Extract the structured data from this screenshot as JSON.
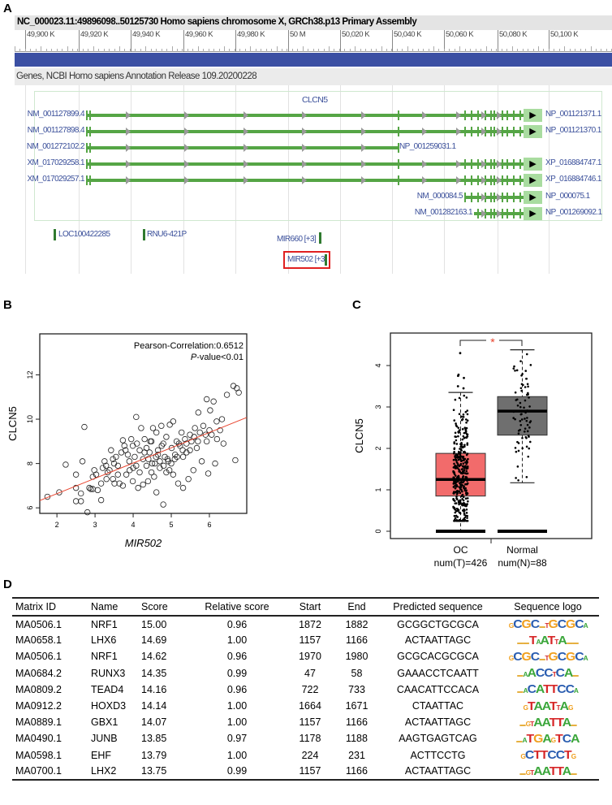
{
  "panels": {
    "a": "A",
    "b": "B",
    "c": "C",
    "d": "D"
  },
  "genome_browser": {
    "title": "NC_000023.11:49896098..50125730 Homo sapiens chromosome X, GRCh38.p13 Primary Assembly",
    "ruler_ticks": [
      "49,900 K",
      "49,920 K",
      "49,940 K",
      "49,960 K",
      "49,980 K",
      "50 M",
      "50,020 K",
      "50,040 K",
      "50,060 K",
      "50,080 K",
      "50,100 K"
    ],
    "track_name": "Genes, NCBI Homo sapiens Annotation Release 109.20200228",
    "gene_name": "CLCN5",
    "transcripts": [
      {
        "left": "NM_001127899.4",
        "right": "NP_001121371.1"
      },
      {
        "left": "NM_001127898.4",
        "right": "NP_001121370.1"
      },
      {
        "left": "NM_001272102.2",
        "right": "NP_001259031.1"
      },
      {
        "left": "XM_017029258.1",
        "right": "XP_016884747.1"
      },
      {
        "left": "XM_017029257.1",
        "right": "XP_016884746.1"
      },
      {
        "left": "NM_000084.5",
        "right": "NP_000075.1"
      },
      {
        "left": "NM_001282163.1",
        "right": "NP_001269092.1"
      }
    ],
    "other_genes": [
      "LOC100422285",
      "RNU6-421P",
      "MIR660 [+3]",
      "MIR502 [+3]"
    ],
    "colors": {
      "transcript": "#55a545",
      "highlight": "#e02020",
      "scale_bar": "#3b4fa3"
    }
  },
  "chart_data": [
    {
      "type": "scatter",
      "title": "",
      "annotation": [
        "Pearson-Correlation:0.6512",
        "P",
        "-value<0.01"
      ],
      "xlabel": "MIR502",
      "ylabel": "CLCN5",
      "xlim": [
        1.55,
        6.98
      ],
      "ylim": [
        5.75,
        13.85
      ],
      "xticks": [
        "2",
        "3",
        "4",
        "5",
        "6"
      ],
      "yticks": [
        "6",
        "8",
        "10",
        "12"
      ],
      "regression": {
        "slope": 0.69,
        "intercept": 5.26,
        "color": "#e8402a"
      },
      "points": [
        [
          1.75,
          6.5
        ],
        [
          2.06,
          6.7
        ],
        [
          2.23,
          7.95
        ],
        [
          2.5,
          7.5
        ],
        [
          2.5,
          6.9
        ],
        [
          2.5,
          6.3
        ],
        [
          2.63,
          6.65
        ],
        [
          2.63,
          6.3
        ],
        [
          2.67,
          8.1
        ],
        [
          2.72,
          9.65
        ],
        [
          2.8,
          5.8
        ],
        [
          2.85,
          6.9
        ],
        [
          2.89,
          6.85
        ],
        [
          2.94,
          7.4
        ],
        [
          2.94,
          6.85
        ],
        [
          2.98,
          7.7
        ],
        [
          3.03,
          7.5
        ],
        [
          3.07,
          6.8
        ],
        [
          3.16,
          6.35
        ],
        [
          3.16,
          7.1
        ],
        [
          3.2,
          7.8
        ],
        [
          3.25,
          8.1
        ],
        [
          3.29,
          7.9
        ],
        [
          3.33,
          7.6
        ],
        [
          3.38,
          7.7
        ],
        [
          3.42,
          8.6
        ],
        [
          3.47,
          8.2
        ],
        [
          3.47,
          7.3
        ],
        [
          3.51,
          7.1
        ],
        [
          3.55,
          8.3
        ],
        [
          3.6,
          7.5
        ],
        [
          3.64,
          7.1
        ],
        [
          3.69,
          8.5
        ],
        [
          3.73,
          9.05
        ],
        [
          3.73,
          7.0
        ],
        [
          3.77,
          8.8
        ],
        [
          3.82,
          7.5
        ],
        [
          3.86,
          8.4
        ],
        [
          3.91,
          7.7
        ],
        [
          3.95,
          9.1
        ],
        [
          3.99,
          8.8
        ],
        [
          3.99,
          7.2
        ],
        [
          4.04,
          8.3
        ],
        [
          4.08,
          10.1
        ],
        [
          4.08,
          7.9
        ],
        [
          4.13,
          6.9
        ],
        [
          4.17,
          8.6
        ],
        [
          4.17,
          7.6
        ],
        [
          4.21,
          9.6
        ],
        [
          4.26,
          8.2
        ],
        [
          4.26,
          7.05
        ],
        [
          4.3,
          9.1
        ],
        [
          4.35,
          8.7
        ],
        [
          4.35,
          7.9
        ],
        [
          4.39,
          7.2
        ],
        [
          4.43,
          8.5
        ],
        [
          4.48,
          9.0
        ],
        [
          4.48,
          7.6
        ],
        [
          4.52,
          9.6
        ],
        [
          4.57,
          8.0
        ],
        [
          4.61,
          6.7
        ],
        [
          4.61,
          9.4
        ],
        [
          4.65,
          8.6
        ],
        [
          4.7,
          7.8
        ],
        [
          4.74,
          9.7
        ],
        [
          4.79,
          8.9
        ],
        [
          4.79,
          6.15
        ],
        [
          4.83,
          8.3
        ],
        [
          4.87,
          9.2
        ],
        [
          4.87,
          7.6
        ],
        [
          4.92,
          8.1
        ],
        [
          4.96,
          9.75
        ],
        [
          5.01,
          8.7
        ],
        [
          5.05,
          9.9
        ],
        [
          5.05,
          7.5
        ],
        [
          5.09,
          8.2
        ],
        [
          5.14,
          9.0
        ],
        [
          5.18,
          7.1
        ],
        [
          5.23,
          8.8
        ],
        [
          5.27,
          9.4
        ],
        [
          5.31,
          8.3
        ],
        [
          5.31,
          6.9
        ],
        [
          5.36,
          9.1
        ],
        [
          5.4,
          8.5
        ],
        [
          5.45,
          7.3
        ],
        [
          5.49,
          9.3
        ],
        [
          5.49,
          8.6
        ],
        [
          5.53,
          9.0
        ],
        [
          5.58,
          7.7
        ],
        [
          5.62,
          9.6
        ],
        [
          5.67,
          8.7
        ],
        [
          5.71,
          10.3
        ],
        [
          5.75,
          9.4
        ],
        [
          5.8,
          8.1
        ],
        [
          5.84,
          9.7
        ],
        [
          5.93,
          10.9
        ],
        [
          5.93,
          9.0
        ],
        [
          5.97,
          7.55
        ],
        [
          6.02,
          10.4
        ],
        [
          6.06,
          9.3
        ],
        [
          6.11,
          10.8
        ],
        [
          6.15,
          8.0
        ],
        [
          6.19,
          9.9
        ],
        [
          6.28,
          9.5
        ],
        [
          6.33,
          10.0
        ],
        [
          6.37,
          8.9
        ],
        [
          6.46,
          11.1
        ],
        [
          6.63,
          11.5
        ],
        [
          6.72,
          11.4
        ],
        [
          6.77,
          11.2
        ],
        [
          6.68,
          8.15
        ],
        [
          3.5,
          8.0
        ],
        [
          3.9,
          8.1
        ],
        [
          4.0,
          7.8
        ],
        [
          4.4,
          8.2
        ],
        [
          4.5,
          8.0
        ],
        [
          4.55,
          7.4
        ],
        [
          4.6,
          8.3
        ],
        [
          4.7,
          8.1
        ],
        [
          4.8,
          7.9
        ],
        [
          4.9,
          8.2
        ],
        [
          5.0,
          8.0
        ],
        [
          5.1,
          8.4
        ],
        [
          5.2,
          8.9
        ],
        [
          5.3,
          8.6
        ],
        [
          5.4,
          8.9
        ],
        [
          5.6,
          9.2
        ],
        [
          5.7,
          9.0
        ],
        [
          5.9,
          9.3
        ],
        [
          6.0,
          9.5
        ],
        [
          6.2,
          9.1
        ],
        [
          3.3,
          7.3
        ],
        [
          3.6,
          7.9
        ],
        [
          3.8,
          8.6
        ],
        [
          4.1,
          8.9
        ],
        [
          4.3,
          8.5
        ],
        [
          4.45,
          9.0
        ],
        [
          4.65,
          8.4
        ],
        [
          4.75,
          8.8
        ],
        [
          4.95,
          7.7
        ],
        [
          5.15,
          8.3
        ]
      ]
    },
    {
      "type": "box",
      "ylabel": "CLCN5",
      "ylim": [
        -0.2,
        4.75
      ],
      "yticks": [
        "0",
        "1",
        "2",
        "3",
        "4"
      ],
      "significance": "*",
      "groups": [
        {
          "name": "OC",
          "count_label": "num(T)=426",
          "n": 426,
          "color": "#f26b6b",
          "whisker_low": 0,
          "q1": 0.85,
          "median": 1.25,
          "q3": 1.88,
          "whisker_high": 3.35,
          "outliers": [
            3.45,
            3.5,
            3.7,
            3.75,
            3.78,
            4.3
          ]
        },
        {
          "name": "Normal",
          "count_label": "num(N)=88",
          "n": 88,
          "color": "#6f6f6f",
          "whisker_low": 1.17,
          "q1": 2.32,
          "median": 2.9,
          "q3": 3.25,
          "whisker_high": 4.38,
          "outliers": []
        }
      ]
    }
  ],
  "table": {
    "headers": [
      "Matrix ID",
      "Name",
      "Score",
      "Relative score",
      "Start",
      "End",
      "Predicted sequence",
      "Sequence logo"
    ],
    "rows": [
      {
        "id": "MA0506.1",
        "name": "NRF1",
        "score": "15.00",
        "rel": "0.96",
        "start": "1872",
        "end": "1882",
        "seq": "GCGGCTGCGCA",
        "logo": "gCGC_tGCGCa"
      },
      {
        "id": "MA0658.1",
        "name": "LHX6",
        "score": "14.69",
        "rel": "1.00",
        "start": "1157",
        "end": "1166",
        "seq": "ACTAATTAGC",
        "logo": "__TaATtA__"
      },
      {
        "id": "MA0506.1",
        "name": "NRF1",
        "score": "14.62",
        "rel": "0.96",
        "start": "1970",
        "end": "1980",
        "seq": "GCGCACGCGCA",
        "logo": "gCGC_tGCGCa"
      },
      {
        "id": "MA0684.2",
        "name": "RUNX3",
        "score": "14.35",
        "rel": "0.99",
        "start": "47",
        "end": "58",
        "seq": "GAAACCTCAATT",
        "logo": "_aACCtCA_"
      },
      {
        "id": "MA0809.2",
        "name": "TEAD4",
        "score": "14.16",
        "rel": "0.96",
        "start": "722",
        "end": "733",
        "seq": "CAACATTCCACA",
        "logo": "_aCATTCCa"
      },
      {
        "id": "MA0912.2",
        "name": "HOXD3",
        "score": "14.14",
        "rel": "1.00",
        "start": "1664",
        "end": "1671",
        "seq": "CTAATTAC",
        "logo": "gTAATtAg"
      },
      {
        "id": "MA0889.1",
        "name": "GBX1",
        "score": "14.07",
        "rel": "1.00",
        "start": "1157",
        "end": "1166",
        "seq": "ACTAATTAGC",
        "logo": "_gtAATTA_"
      },
      {
        "id": "MA0490.1",
        "name": "JUNB",
        "score": "13.85",
        "rel": "0.97",
        "start": "1178",
        "end": "1188",
        "seq": "AAGTGAGTCAG",
        "logo": "_aTGAgTCA"
      },
      {
        "id": "MA0598.1",
        "name": "EHF",
        "score": "13.79",
        "rel": "1.00",
        "start": "224",
        "end": "231",
        "seq": "ACTTCCTG",
        "logo": "gCTTCCTg"
      },
      {
        "id": "MA0700.1",
        "name": "LHX2",
        "score": "13.75",
        "rel": "0.99",
        "start": "1157",
        "end": "1166",
        "seq": "ACTAATTAGC",
        "logo": "_gtAATTA_"
      }
    ]
  }
}
